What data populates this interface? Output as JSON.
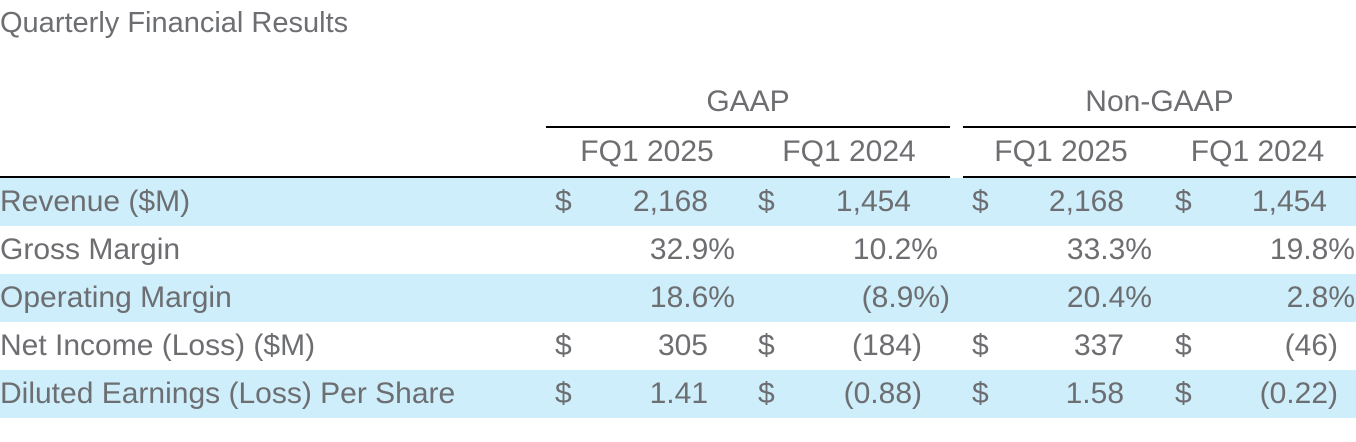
{
  "title": "Quarterly Financial Results",
  "groups": {
    "gaap": "GAAP",
    "non_gaap": "Non-GAAP"
  },
  "columns": [
    "FQ1 2025",
    "FQ1 2024",
    "FQ1 2025",
    "FQ1 2024"
  ],
  "currency_symbol": "$",
  "rows": [
    {
      "label": "Revenue ($M)",
      "values": [
        "2,168",
        "1,454",
        "2,168",
        "1,454"
      ]
    },
    {
      "label": "Gross Margin",
      "values": [
        "32.9%",
        "10.2%",
        "33.3%",
        "19.8%"
      ]
    },
    {
      "label": "Operating Margin",
      "values": [
        "18.6%",
        "(8.9%)",
        "20.4%",
        "2.8%"
      ]
    },
    {
      "label": "Net Income (Loss) ($M)",
      "values": [
        "305",
        "(184)",
        "337",
        "(46)"
      ]
    },
    {
      "label": "Diluted Earnings (Loss) Per Share",
      "values": [
        "1.41",
        "(0.88)",
        "1.58",
        "(0.22)"
      ]
    }
  ],
  "colors": {
    "text": "#6d6e71",
    "shade": "#cdeefa",
    "rule": "#000000"
  }
}
